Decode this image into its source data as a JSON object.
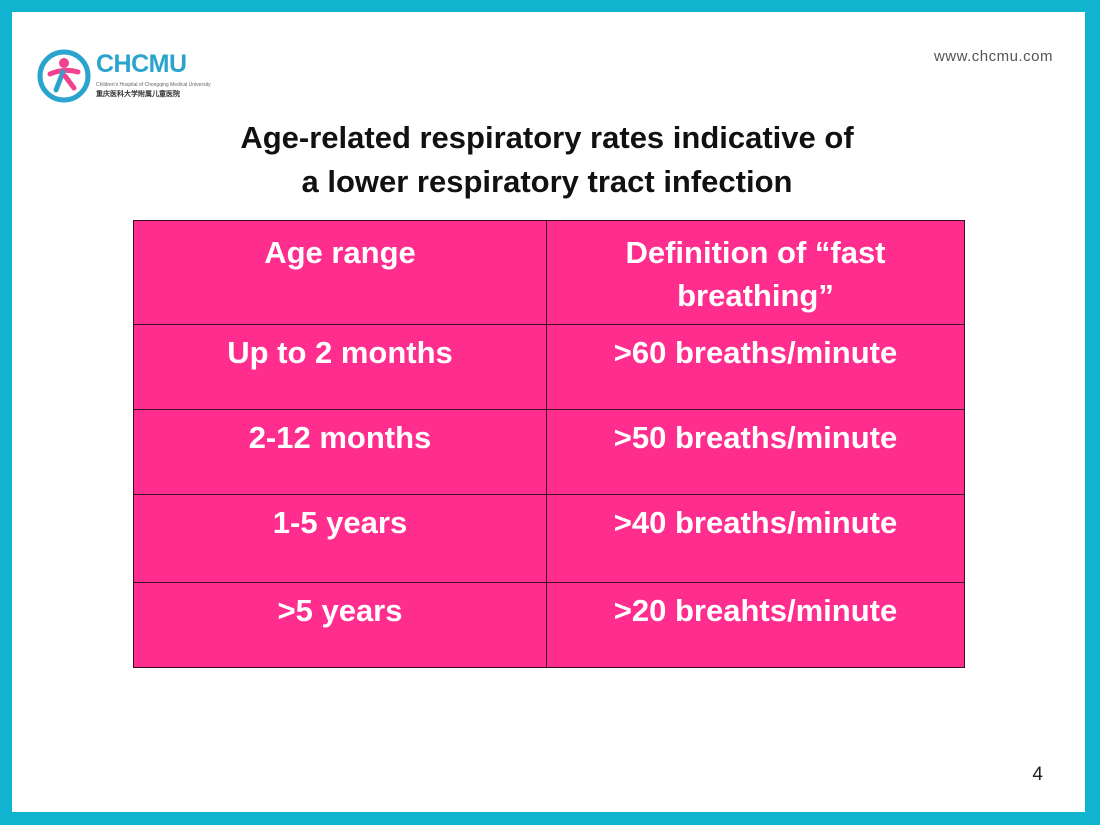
{
  "header": {
    "logo_text": "CHCMU",
    "logo_subtitle_en": "Children's Hospital of Chongqing Medical University",
    "logo_subtitle_cn": "重庆医科大学附属儿童医院",
    "url": "www.chcmu.com"
  },
  "slide": {
    "title_line1": "Age-related respiratory rates indicative of",
    "title_line2": "a lower respiratory tract infection",
    "page_number": "4"
  },
  "table": {
    "headers": [
      "Age range",
      "Definition of “fast breathing”"
    ],
    "rows": [
      [
        "Up to 2 months",
        ">60 breaths/minute"
      ],
      [
        "2-12 months",
        ">50 breaths/minute"
      ],
      [
        "1-5 years",
        ">40 breaths/minute"
      ],
      [
        ">5 years",
        ">20 breahts/minute"
      ]
    ]
  },
  "colors": {
    "frame": "#11b4cf",
    "table_fill": "#ff2d8d",
    "logo_accent": "#2aa4cc"
  },
  "icons": [
    "chcmu-logo-icon"
  ]
}
